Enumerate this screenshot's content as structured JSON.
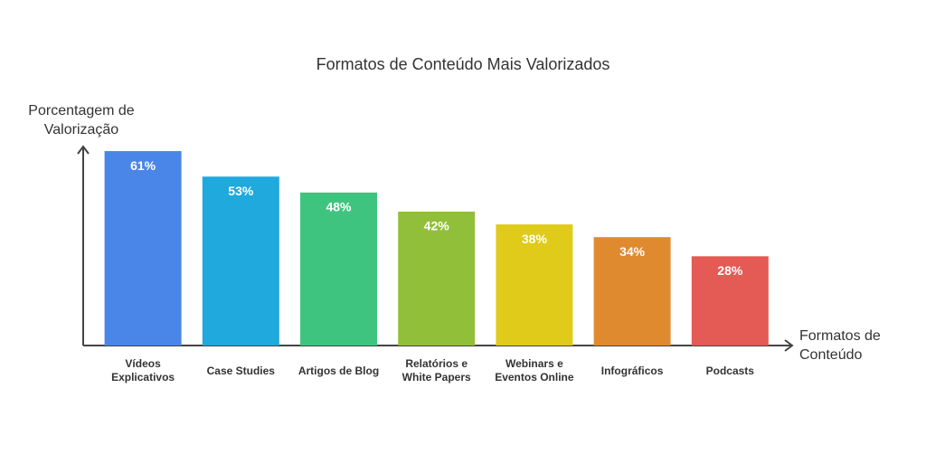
{
  "chart_data": {
    "type": "bar",
    "title": "Formatos de Conteúdo Mais Valorizados",
    "y_label": "Porcentagem de\nValorização",
    "x_label": "Formatos de\nConteúdo",
    "categories": [
      "Vídeos\nExplicativos",
      "Case Studies",
      "Artigos de Blog",
      "Relatórios e\nWhite Papers",
      "Webinars e\nEventos Online",
      "Infográficos",
      "Podcasts"
    ],
    "values": [
      61,
      53,
      48,
      42,
      38,
      34,
      28
    ],
    "value_labels": [
      "61%",
      "53%",
      "48%",
      "42%",
      "38%",
      "34%",
      "28%"
    ],
    "colors": [
      "#4a86e8",
      "#20a9dc",
      "#3fc47f",
      "#92bf3a",
      "#e0ca1a",
      "#e08a30",
      "#e45a54"
    ],
    "ylim": [
      0,
      63
    ]
  }
}
